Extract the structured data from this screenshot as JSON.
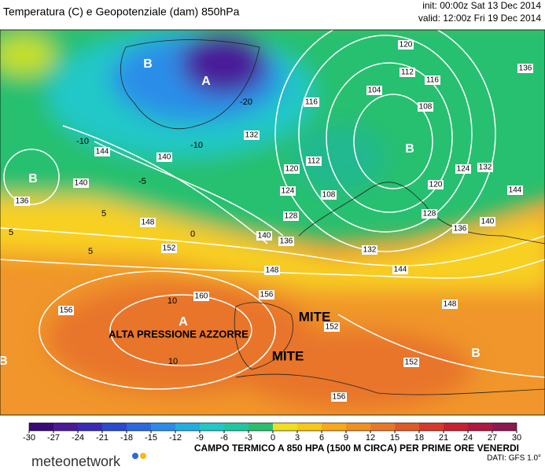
{
  "header": {
    "title": "Temperatura (C) e Geopotenziale (dam) 850hPa",
    "init": "init: 00:00z Sat 13 Dec 2014",
    "valid": "valid: 12:00z Fri 19 Dec 2014"
  },
  "map": {
    "pressure_centers": [
      "B",
      "A",
      "B",
      "B",
      "A",
      "B",
      "B"
    ],
    "annotations": [
      "ALTA PRESSIONE AZZORRE",
      "MITE",
      "MITE"
    ],
    "geopotential_labels": [
      "120",
      "112",
      "116",
      "104",
      "108",
      "136",
      "116",
      "132",
      "140",
      "144",
      "140",
      "136",
      "120",
      "112",
      "124",
      "108",
      "128",
      "120",
      "124",
      "132",
      "128",
      "144",
      "140",
      "136",
      "140",
      "136",
      "132",
      "144",
      "148",
      "152",
      "148",
      "156",
      "160",
      "156",
      "148",
      "152",
      "152",
      "156"
    ],
    "temperature_labels": [
      "-20",
      "-10",
      "-10",
      "-5",
      "0",
      "5",
      "5",
      "10",
      "10",
      "5"
    ]
  },
  "colorbar": {
    "ticks": [
      -30,
      -27,
      -24,
      -21,
      -18,
      -15,
      -12,
      -9,
      -6,
      -3,
      0,
      3,
      6,
      9,
      12,
      15,
      18,
      21,
      24,
      27,
      30
    ],
    "colors": [
      "#3a0a78",
      "#4a1a9a",
      "#3a2ab8",
      "#2a4ad0",
      "#2a6ae0",
      "#2a8ee8",
      "#22aee0",
      "#20c8c8",
      "#20c8a0",
      "#28c070",
      "#f0e020",
      "#f8c818",
      "#f8a818",
      "#f09020",
      "#e87828",
      "#e05a28",
      "#d83a28",
      "#c82030",
      "#b01840",
      "#901850"
    ],
    "caption": "CAMPO TERMICO A 850 HPA (1500 M CIRCA) PER PRIME ORE VENERDI",
    "source": "DATI: GFS 1.0°"
  },
  "logo": "meteonetwork"
}
